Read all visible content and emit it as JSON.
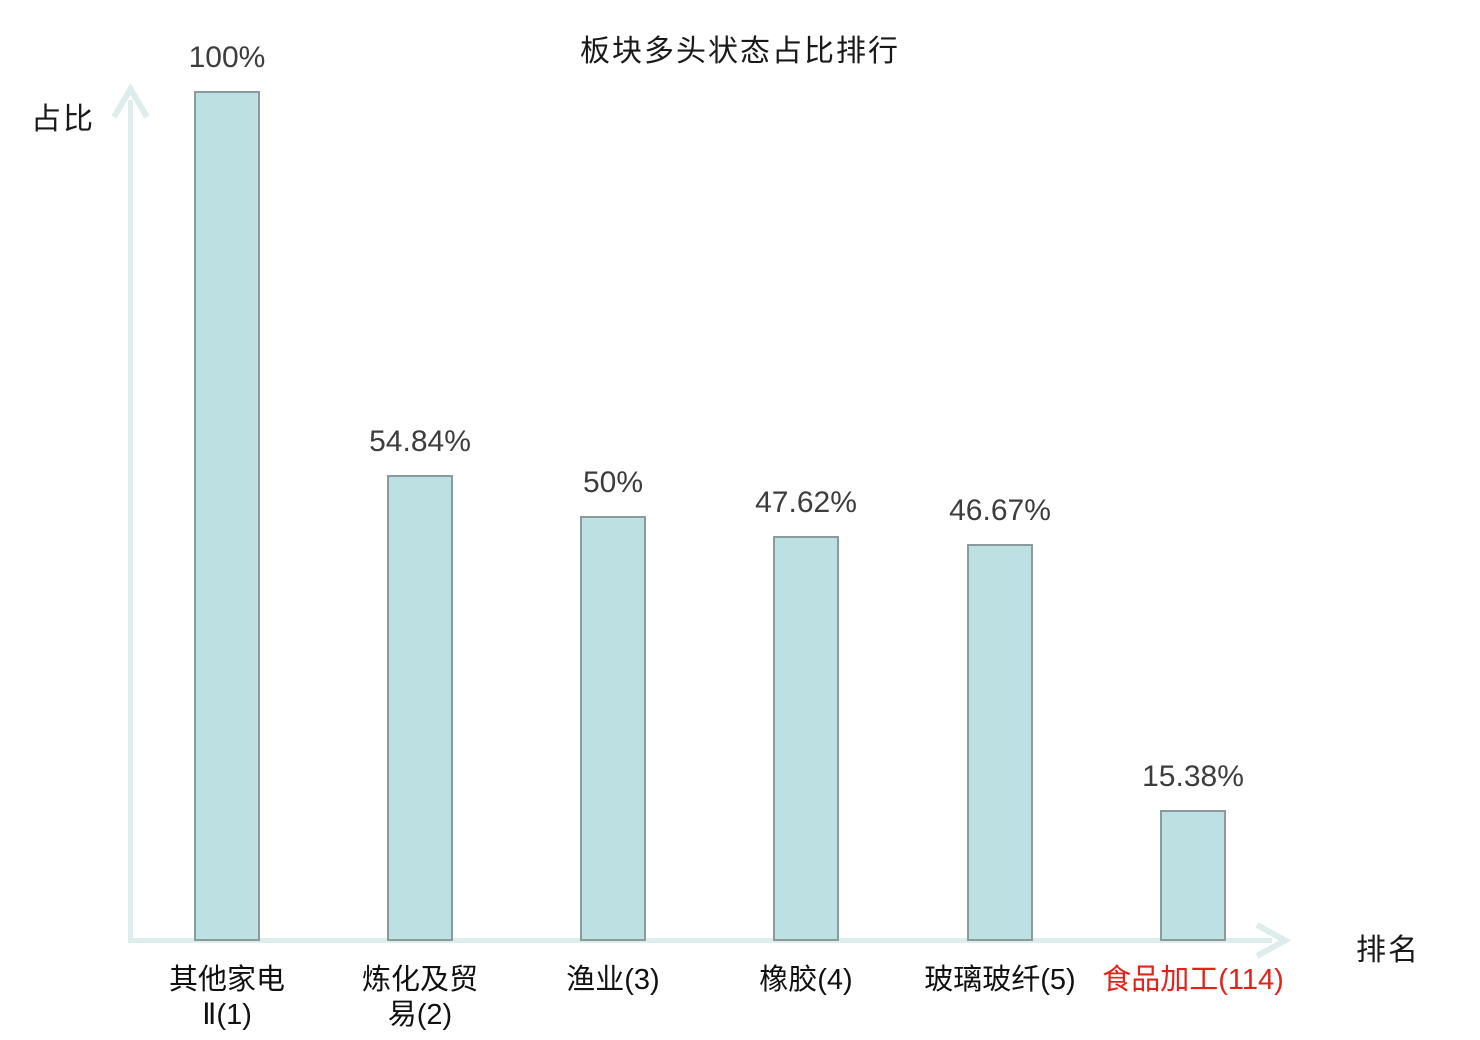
{
  "chart_data": {
    "type": "bar",
    "title": "板块多头状态占比排行",
    "xlabel": "排名",
    "ylabel": "占比",
    "categories": [
      "其他家电Ⅱ(1)",
      "炼化及贸易(2)",
      "渔业(3)",
      "橡胶(4)",
      "玻璃玻纤(5)",
      "食品加工(114)"
    ],
    "category_lines": [
      [
        "其他家电",
        "Ⅱ(1)"
      ],
      [
        "炼化及贸",
        "易(2)"
      ],
      [
        "渔业(3)"
      ],
      [
        "橡胶(4)"
      ],
      [
        "玻璃玻纤(5)"
      ],
      [
        "食品加工(114)"
      ]
    ],
    "values": [
      100,
      54.84,
      50,
      47.62,
      46.67,
      15.38
    ],
    "value_labels": [
      "100%",
      "54.84%",
      "50%",
      "47.62%",
      "46.67%",
      "15.38%"
    ],
    "highlight_index": 5,
    "ylim": [
      0,
      100
    ],
    "grid": false,
    "legend": null,
    "colors": {
      "bar_fill": "#bde0e3",
      "bar_border": "#8a9b9d",
      "axis": "#dcedec",
      "title": "#1a1a1a",
      "value_label": "#3d3d3d",
      "category_label": "#111111",
      "highlight_label": "#e5211a"
    }
  }
}
